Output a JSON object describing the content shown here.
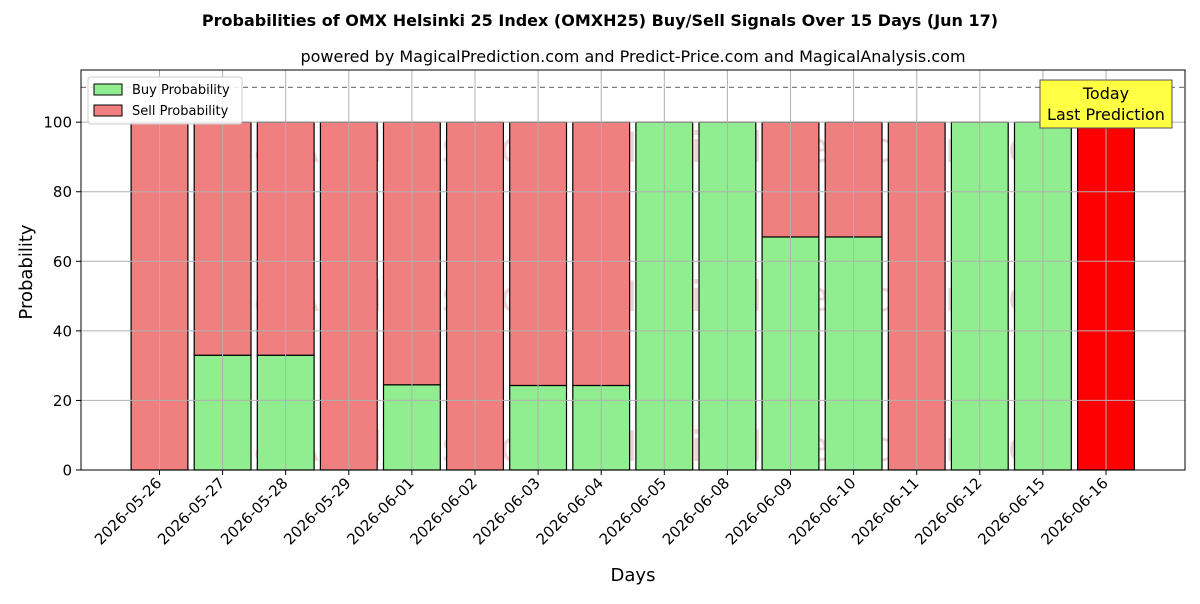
{
  "chart_data": {
    "type": "bar",
    "stacked": true,
    "title": "Probabilities of OMX Helsinki 25 Index (OMXH25) Buy/Sell Signals Over 15 Days (Jun 17)",
    "subtitle": "powered by MagicalPrediction.com and Predict-Price.com and MagicalAnalysis.com",
    "xlabel": "Days",
    "ylabel": "Probability",
    "ylim": [
      0,
      115
    ],
    "yticks": [
      0,
      20,
      40,
      60,
      80,
      100
    ],
    "grid": true,
    "legend_position": "top-left",
    "reference_line": 110,
    "categories": [
      "2026-05-26",
      "2026-05-27",
      "2026-05-28",
      "2026-05-29",
      "2026-06-01",
      "2026-06-02",
      "2026-06-03",
      "2026-06-04",
      "2026-06-05",
      "2026-06-08",
      "2026-06-09",
      "2026-06-10",
      "2026-06-11",
      "2026-06-12",
      "2026-06-15",
      "2026-06-16"
    ],
    "series": [
      {
        "name": "Buy Probability",
        "color": "#90ee90",
        "values": [
          0,
          33,
          33,
          0,
          24.5,
          0,
          24.3,
          24.3,
          100,
          100,
          67,
          67,
          0,
          100,
          100,
          0
        ]
      },
      {
        "name": "Sell Probability",
        "color": "#f08080",
        "values": [
          100,
          67,
          67,
          100,
          75.5,
          100,
          75.7,
          75.7,
          0,
          0,
          33,
          33,
          100,
          0,
          0,
          100
        ]
      }
    ],
    "highlight": {
      "index": 15,
      "color": "#ff0000"
    },
    "annotation": {
      "lines": [
        "Today",
        "Last Prediction"
      ],
      "background": "#ffff44"
    },
    "watermarks": [
      "MagicalAnalysis.com",
      "MagicalPrediction.com"
    ]
  }
}
